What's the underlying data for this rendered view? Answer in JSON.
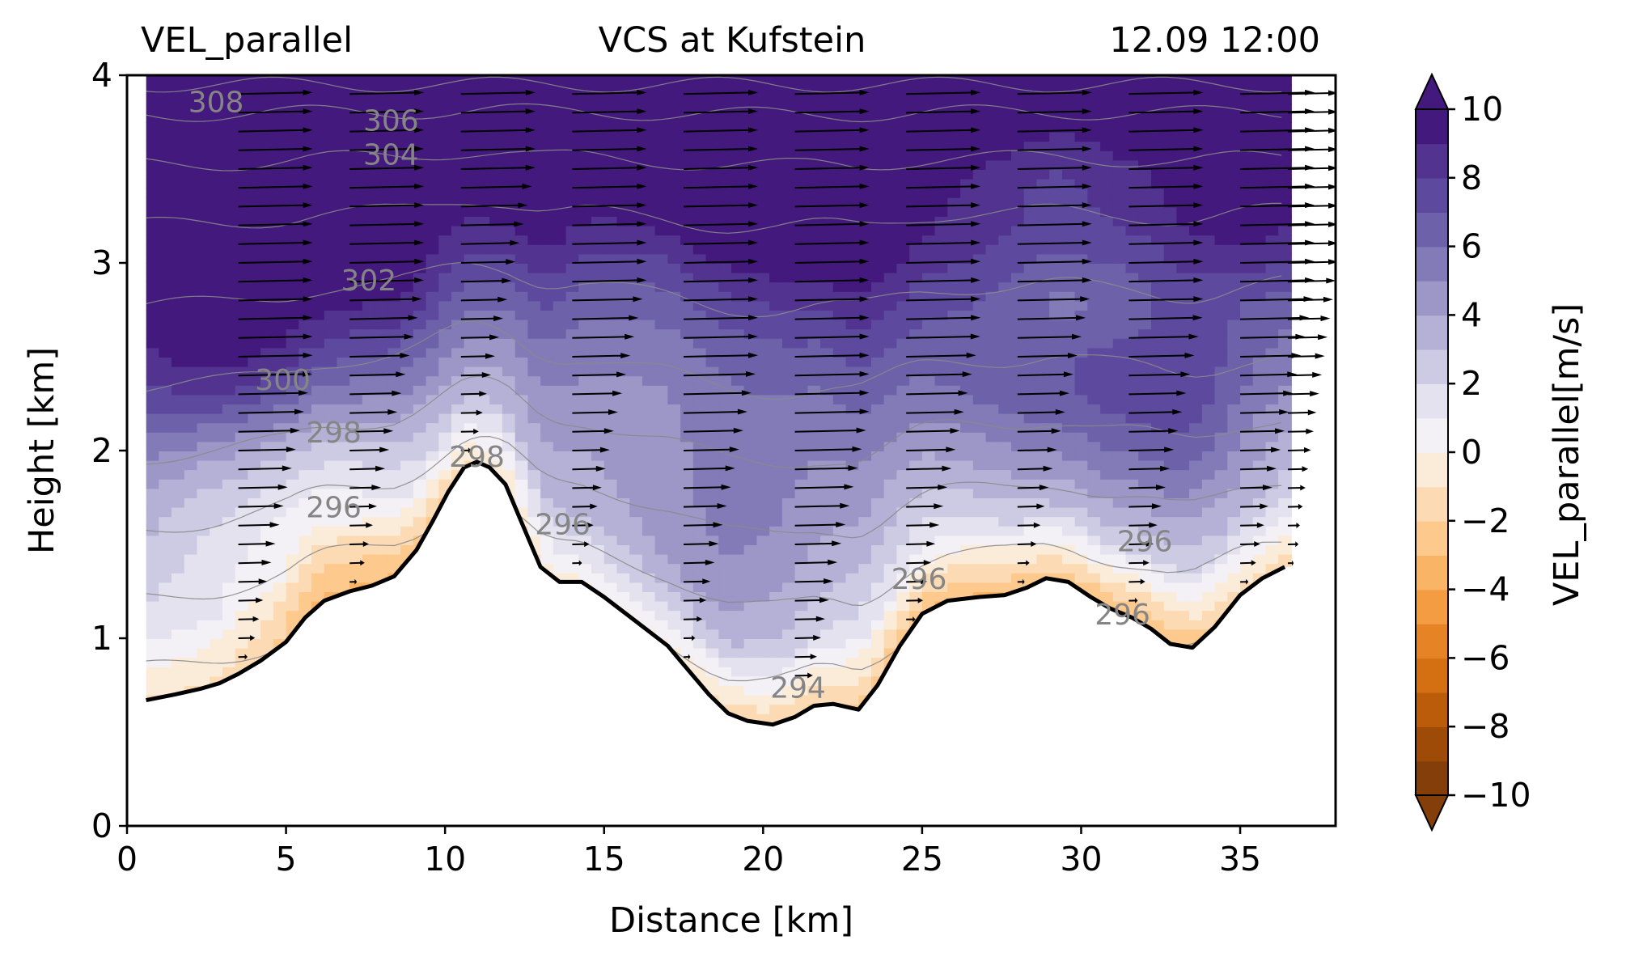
{
  "title_left": "VEL_parallel",
  "title_center": "VCS at Kufstein",
  "title_right": "12.09 12:00",
  "colors": {
    "purple_scale": [
      "#f3f0f6",
      "#e4e2ef",
      "#cdcbe3",
      "#b5b1d6",
      "#9c97c7",
      "#827bb8",
      "#6d62aa",
      "#5d4a9f",
      "#52338f",
      "#44197d"
    ],
    "orange_scale": [
      "#fbecda",
      "#fcdbb4",
      "#fdc98c",
      "#f9b465",
      "#f39c42",
      "#e68425",
      "#d46f12",
      "#bb5c0b",
      "#9f4b08",
      "#833e0a"
    ],
    "terrain_line": "#000000",
    "theta_contour": "#8a8a8a",
    "arrow": "#000000"
  },
  "chart_data": {
    "type": "vertical_cross_section",
    "title": "VCS at Kufstein",
    "variable": "VEL_parallel",
    "time": "12.09 12:00",
    "xlabel": "Distance [km]",
    "ylabel": "Height [km]",
    "xlim": [
      0,
      38
    ],
    "ylim": [
      0,
      4
    ],
    "xticks": [
      "0",
      "5",
      "10",
      "15",
      "20",
      "25",
      "30",
      "35"
    ],
    "yticks": [
      "0",
      "1",
      "2",
      "3",
      "4"
    ],
    "colorbar": {
      "label": "VEL_parallel[m/s]",
      "range": [
        -10,
        10
      ],
      "step": 1,
      "extend": "both",
      "ticks": [
        "−10",
        "−8",
        "−6",
        "−4",
        "−2",
        "0",
        "2",
        "4",
        "6",
        "8",
        "10"
      ]
    },
    "terrain": {
      "x": [
        0.6,
        1.5,
        2.3,
        2.9,
        3.5,
        4.2,
        5.0,
        5.6,
        6.2,
        7.0,
        7.7,
        8.4,
        9.1,
        9.6,
        10.1,
        10.6,
        11.0,
        11.4,
        11.9,
        12.4,
        13.0,
        13.6,
        14.3,
        15.0,
        16.0,
        17.0,
        17.5,
        18.3,
        18.9,
        19.5,
        20.3,
        21.0,
        21.6,
        22.2,
        23.0,
        23.6,
        24.3,
        25.0,
        25.8,
        26.8,
        27.6,
        28.3,
        28.9,
        29.6,
        30.3,
        30.9,
        31.6,
        32.2,
        32.8,
        33.5,
        34.2,
        35.0,
        35.7,
        36.4
      ],
      "y": [
        0.67,
        0.7,
        0.73,
        0.76,
        0.81,
        0.88,
        0.98,
        1.11,
        1.2,
        1.25,
        1.28,
        1.33,
        1.47,
        1.62,
        1.78,
        1.91,
        1.94,
        1.91,
        1.82,
        1.62,
        1.38,
        1.3,
        1.3,
        1.22,
        1.09,
        0.96,
        0.86,
        0.7,
        0.6,
        0.56,
        0.54,
        0.58,
        0.64,
        0.65,
        0.62,
        0.75,
        0.96,
        1.13,
        1.2,
        1.22,
        1.23,
        1.27,
        1.32,
        1.3,
        1.22,
        1.16,
        1.11,
        1.05,
        0.97,
        0.95,
        1.06,
        1.23,
        1.32,
        1.38
      ]
    },
    "theta_contours": [
      {
        "level": "308",
        "label_at": [
          2.8,
          3.86
        ]
      },
      {
        "level": "306",
        "label_at": [
          8.3,
          3.76
        ]
      },
      {
        "level": "304",
        "label_at": [
          8.3,
          3.58
        ]
      },
      {
        "level": "302",
        "label_at": [
          7.6,
          2.91
        ]
      },
      {
        "level": "300",
        "label_at": [
          4.9,
          2.38
        ]
      },
      {
        "level": "298",
        "label_at": [
          6.5,
          2.1
        ]
      },
      {
        "level": "298",
        "label_at": [
          11.0,
          1.97
        ]
      },
      {
        "level": "296",
        "label_at": [
          6.5,
          1.7
        ]
      },
      {
        "level": "296",
        "label_at": [
          13.7,
          1.61
        ]
      },
      {
        "level": "296",
        "label_at": [
          24.9,
          1.32
        ]
      },
      {
        "level": "296",
        "label_at": [
          32.0,
          1.52
        ]
      },
      {
        "level": "296",
        "label_at": [
          31.3,
          1.13
        ]
      },
      {
        "level": "294",
        "label_at": [
          21.1,
          0.74
        ]
      }
    ],
    "wind_columns_x": [
      3.5,
      7.0,
      10.5,
      14.0,
      17.5,
      21.0,
      24.5,
      28.0,
      31.5,
      35.0,
      36.5
    ],
    "wind_description": "wind vectors parallel to section pointing right, strongest (~8-10 m/s) above 2 km"
  }
}
